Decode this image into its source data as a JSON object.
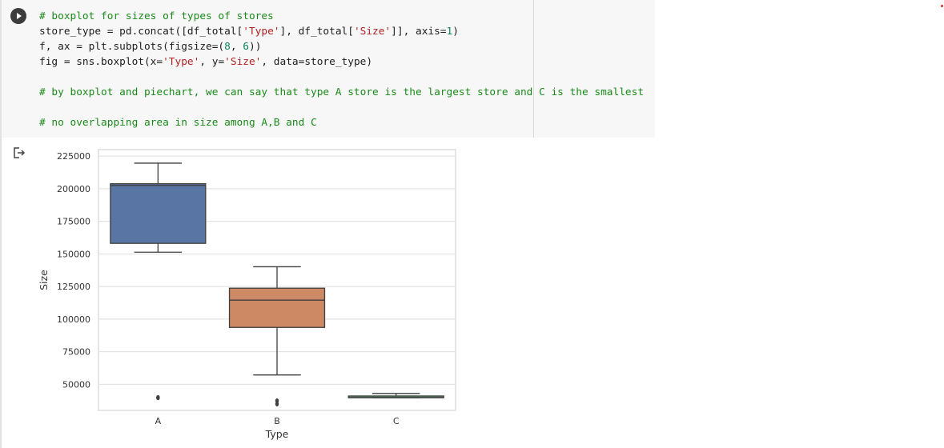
{
  "notebook": {
    "code_lines": [
      [
        [
          "cm",
          "# boxplot for sizes of types of stores"
        ]
      ],
      [
        [
          "",
          "store_type = pd.concat([df_total["
        ],
        [
          "st",
          "'Type'"
        ],
        [
          "",
          "], df_total["
        ],
        [
          "st",
          "'Size'"
        ],
        [
          "",
          "]], axis="
        ],
        [
          "nu",
          "1"
        ],
        [
          "",
          ")"
        ]
      ],
      [
        [
          "",
          "f, ax = plt.subplots(figsize=("
        ],
        [
          "nu",
          "8"
        ],
        [
          "",
          ", "
        ],
        [
          "nu",
          "6"
        ],
        [
          "",
          "))"
        ]
      ],
      [
        [
          "",
          "fig = sns.boxplot(x="
        ],
        [
          "st",
          "'Type'"
        ],
        [
          "",
          ", y="
        ],
        [
          "st",
          "'Size'"
        ],
        [
          "",
          ", data=store_type)"
        ]
      ],
      [],
      [
        [
          "cm",
          "# by boxplot and piechart, we can say that type A store is the largest store and C is the smallest"
        ]
      ],
      [],
      [
        [
          "cm",
          "# no overlapping area in size among A,B and C"
        ]
      ]
    ]
  },
  "chart_data": {
    "type": "boxplot",
    "xlabel": "Type",
    "ylabel": "Size",
    "ylim": [
      30000,
      230000
    ],
    "yticks": [
      50000,
      75000,
      100000,
      125000,
      150000,
      175000,
      200000,
      225000
    ],
    "ytick_labels": [
      "50000",
      "75000",
      "100000",
      "125000",
      "150000",
      "175000",
      "200000",
      "225000"
    ],
    "grid": true,
    "categories": [
      "A",
      "B",
      "C"
    ],
    "boxes": [
      {
        "category": "A",
        "color": "#5975a4",
        "whisker_low": 151315,
        "q1": 158114,
        "median": 202505,
        "q3": 203819,
        "whisker_high": 219622,
        "outliers": [
          39690,
          39910
        ]
      },
      {
        "category": "B",
        "color": "#cc8963",
        "whisker_low": 57197,
        "q1": 93638,
        "median": 114533,
        "q3": 123737,
        "whisker_high": 140167,
        "outliers": [
          34875,
          37392
        ]
      },
      {
        "category": "C",
        "color": "#5f9e6e",
        "whisker_low": 39690,
        "q1": 39690,
        "median": 39910,
        "q3": 41062,
        "whisker_high": 42988,
        "outliers": []
      }
    ]
  }
}
